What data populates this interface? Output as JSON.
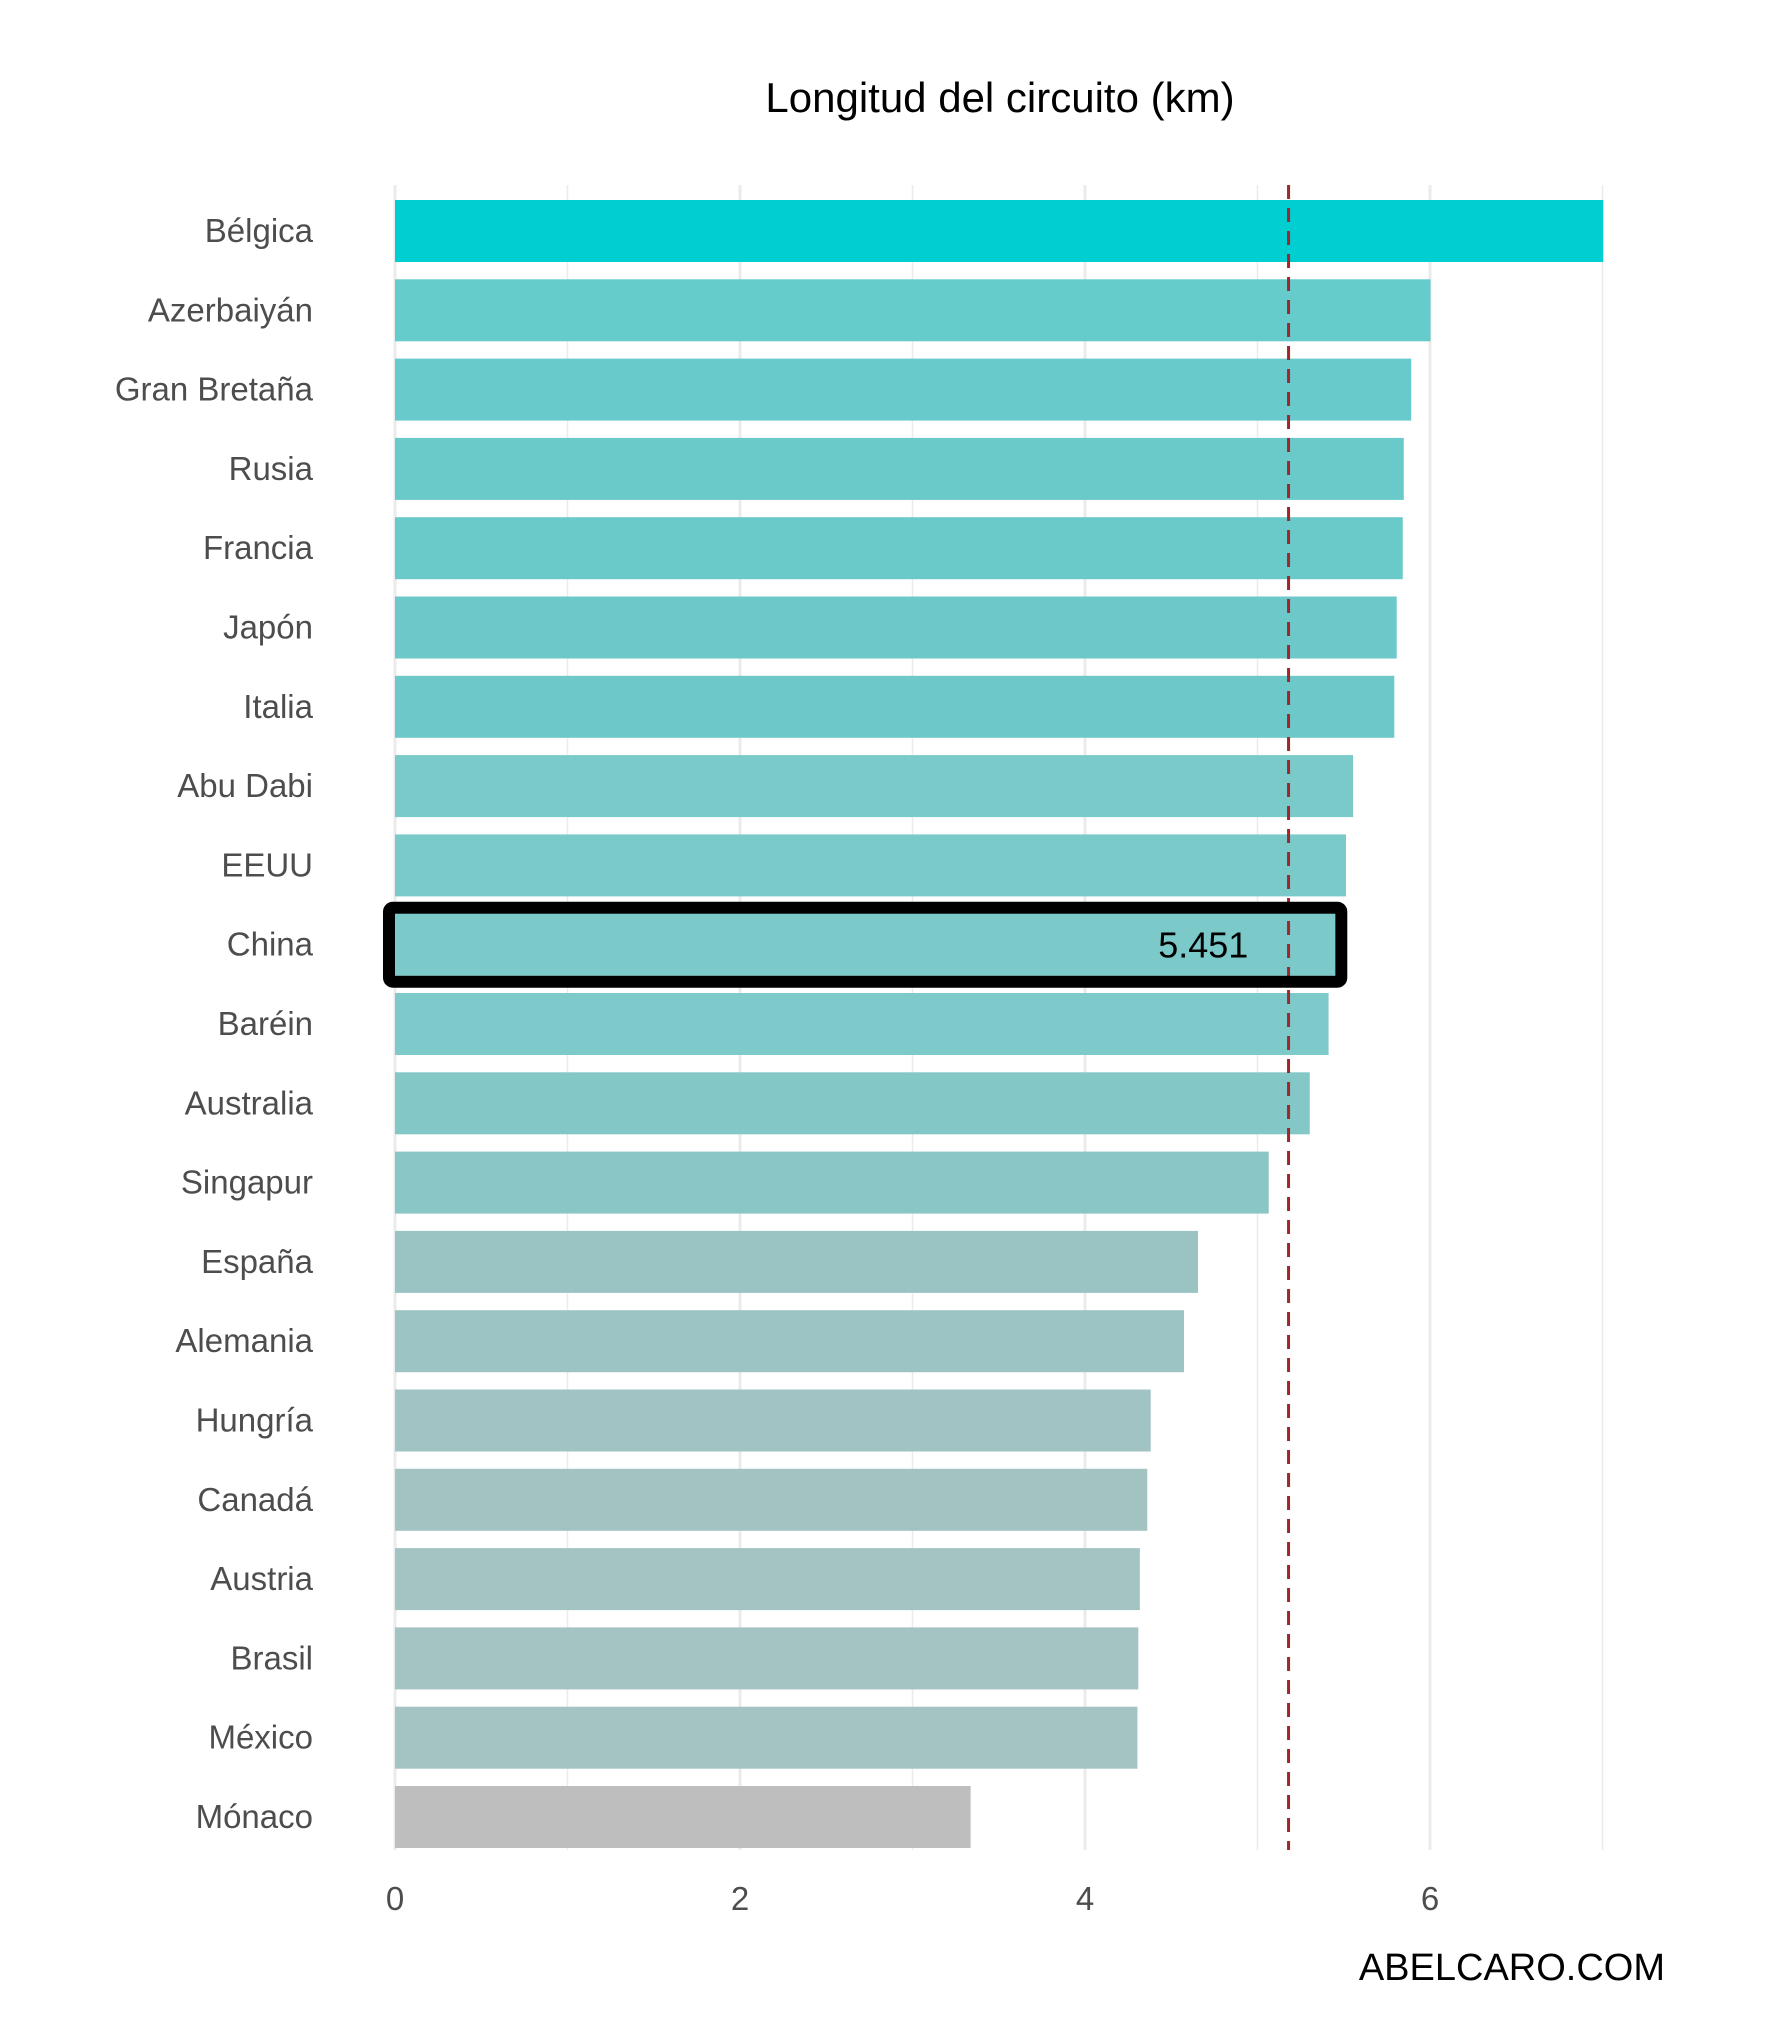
{
  "chart_data": {
    "type": "bar",
    "orientation": "horizontal",
    "title": "Longitud del circuito (km)",
    "xlabel": "",
    "ylabel": "",
    "xlim": [
      0,
      7.0
    ],
    "xticks": [
      0,
      2,
      4,
      6
    ],
    "grid": "vertical",
    "categories": [
      "Bélgica",
      "Azerbaiyán",
      "Gran Bretaña",
      "Rusia",
      "Francia",
      "Japón",
      "Italia",
      "Abu Dabi",
      "EEUU",
      "China",
      "Baréin",
      "Australia",
      "Singapur",
      "España",
      "Alemania",
      "Hungría",
      "Canadá",
      "Austria",
      "Brasil",
      "México",
      "Mónaco"
    ],
    "values": [
      7.004,
      6.003,
      5.891,
      5.848,
      5.842,
      5.807,
      5.793,
      5.554,
      5.513,
      5.451,
      5.412,
      5.303,
      5.065,
      4.655,
      4.574,
      4.381,
      4.361,
      4.318,
      4.309,
      4.304,
      3.337
    ],
    "colors": [
      "#00ced1",
      "#65cbcb",
      "#68caca",
      "#6ac9c9",
      "#6ac9c9",
      "#6dc9c9",
      "#6dc9c9",
      "#7acaca",
      "#7bcaca",
      "#7cc9c9",
      "#7ec9c9",
      "#83c7c7",
      "#8bc6c6",
      "#9ac4c4",
      "#9cc4c4",
      "#a2c3c3",
      "#a3c3c3",
      "#a4c3c3",
      "#a4c3c3",
      "#a4c3c3",
      "#bebebe"
    ],
    "highlight": {
      "category": "China",
      "label": "5.451"
    },
    "reference_line": {
      "value": 5.18,
      "style": "dashed",
      "color": "#a0262d"
    }
  },
  "watermark": "ABELCARO.COM"
}
